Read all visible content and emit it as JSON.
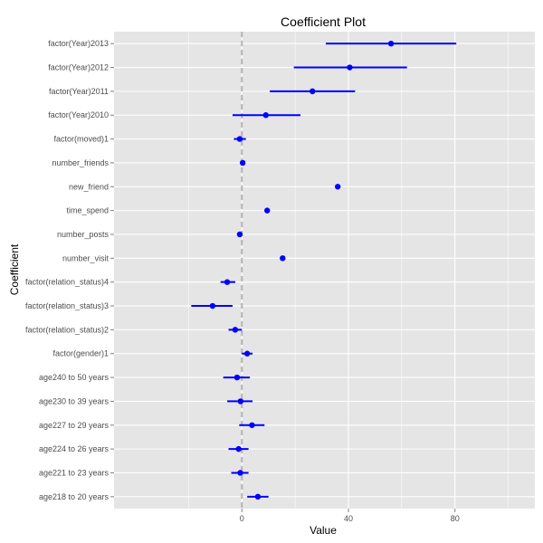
{
  "chart_data": {
    "type": "coefficient-plot",
    "title": "Coefficient Plot",
    "xlabel": "Value",
    "ylabel": "Coefficient",
    "xlim": [
      -48,
      110
    ],
    "x_ticks": [
      0,
      40,
      80
    ],
    "reference_line_x": 0,
    "grid": true,
    "colors": {
      "panel": "#e5e5e5",
      "grid": "#ffffff",
      "point": "#0000ff",
      "interval": "#0000ff",
      "zero_line": "#b3b3b3"
    },
    "coefficients": [
      {
        "label": "factor(Year)2013",
        "estimate": 56,
        "low": 31.5,
        "high": 80.5
      },
      {
        "label": "factor(Year)2012",
        "estimate": 40.5,
        "low": 19.5,
        "high": 62
      },
      {
        "label": "factor(Year)2011",
        "estimate": 26.5,
        "low": 10.5,
        "high": 42.5
      },
      {
        "label": "factor(Year)2010",
        "estimate": 9,
        "low": -3.5,
        "high": 22
      },
      {
        "label": "factor(moved)1",
        "estimate": -0.8,
        "low": -3,
        "high": 1.5
      },
      {
        "label": "number_friends",
        "estimate": 0.3,
        "low": 0,
        "high": 0.6
      },
      {
        "label": "new_friend",
        "estimate": 36,
        "low": 35.8,
        "high": 36.2
      },
      {
        "label": "time_spend",
        "estimate": 9.5,
        "low": 9.3,
        "high": 9.7
      },
      {
        "label": "number_posts",
        "estimate": -0.8,
        "low": -1,
        "high": -0.6
      },
      {
        "label": "number_visit",
        "estimate": 15.3,
        "low": 15.1,
        "high": 15.5
      },
      {
        "label": "factor(relation_status)4",
        "estimate": -5.5,
        "low": -8,
        "high": -2.5
      },
      {
        "label": "factor(relation_status)3",
        "estimate": -11,
        "low": -19,
        "high": -3.5
      },
      {
        "label": "factor(relation_status)2",
        "estimate": -2.5,
        "low": -5,
        "high": 0
      },
      {
        "label": "factor(gender)1",
        "estimate": 2,
        "low": 0,
        "high": 4
      },
      {
        "label": "age240 to 50 years",
        "estimate": -1.8,
        "low": -7,
        "high": 3
      },
      {
        "label": "age230 to 39 years",
        "estimate": -0.5,
        "low": -5.5,
        "high": 4
      },
      {
        "label": "age227 to 29 years",
        "estimate": 3.8,
        "low": -1,
        "high": 8.5
      },
      {
        "label": "age224 to 26 years",
        "estimate": -1.2,
        "low": -5,
        "high": 2.5
      },
      {
        "label": "age221 to 23 years",
        "estimate": -0.6,
        "low": -4,
        "high": 2.5
      },
      {
        "label": "age218 to 20 years",
        "estimate": 6,
        "low": 2,
        "high": 10
      }
    ]
  }
}
